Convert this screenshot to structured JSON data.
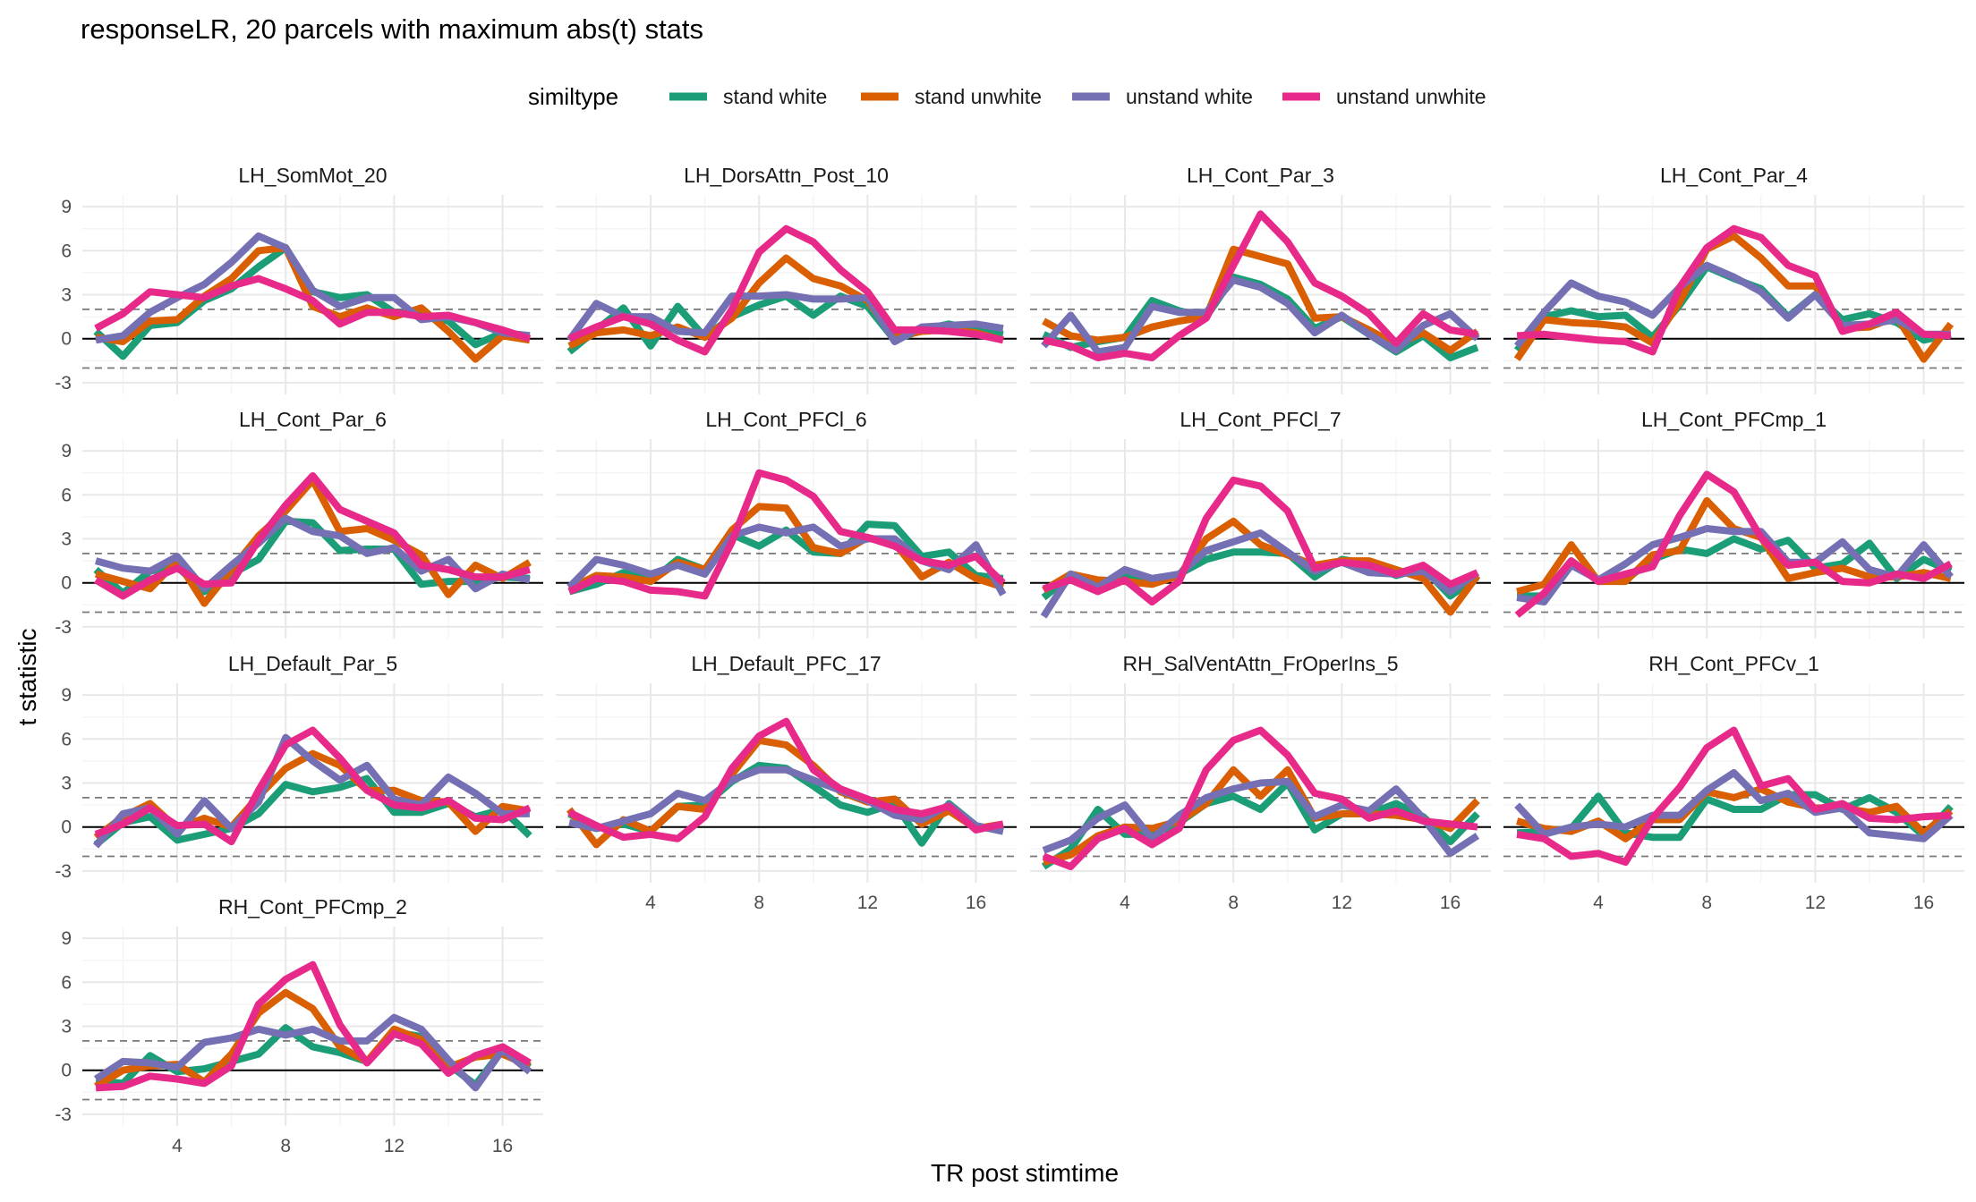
{
  "chart_data": {
    "type": "line",
    "title": "responseLR, 20 parcels with maximum abs(t) stats",
    "xlabel": "TR post stimtime",
    "ylabel": "t statistic",
    "legend": {
      "title": "similtype",
      "placement": "top",
      "entries": [
        {
          "name": "stand white",
          "color": "#1b9e77"
        },
        {
          "name": "stand unwhite",
          "color": "#d95f02"
        },
        {
          "name": "unstand white",
          "color": "#7570b3"
        },
        {
          "name": "unstand unwhite",
          "color": "#e7298a"
        }
      ]
    },
    "xlim": [
      0.5,
      17.5
    ],
    "ylim": [
      -3.8,
      9.8
    ],
    "x_ticks": [
      4,
      8,
      12,
      16
    ],
    "y_ticks": [
      -3,
      0,
      3,
      6,
      9
    ],
    "reference_lines": {
      "solid": 0,
      "dashed": [
        2,
        -2
      ]
    },
    "grid": true,
    "x": [
      1,
      2,
      3,
      4,
      5,
      6,
      7,
      8,
      9,
      10,
      11,
      12,
      13,
      14,
      15,
      16,
      17
    ],
    "panels": [
      {
        "name": "LH_SomMot_20",
        "series": [
          [
            0.5,
            -1.2,
            0.9,
            1.1,
            2.6,
            3.4,
            4.9,
            6.2,
            3.2,
            2.8,
            3.0,
            1.8,
            1.7,
            1.2,
            -0.4,
            0.4,
            0.2
          ],
          [
            0.1,
            -0.2,
            1.2,
            1.3,
            2.9,
            4.1,
            6.0,
            6.2,
            2.2,
            1.5,
            2.1,
            1.5,
            2.1,
            0.5,
            -1.4,
            0.2,
            -0.1
          ],
          [
            -0.1,
            0.2,
            1.8,
            2.8,
            3.7,
            5.2,
            7.0,
            6.2,
            3.3,
            2.2,
            2.8,
            2.8,
            1.3,
            1.5,
            1.1,
            0.4,
            0.2
          ],
          [
            0.7,
            1.7,
            3.2,
            3.0,
            2.8,
            3.6,
            4.1,
            3.4,
            2.6,
            1.0,
            1.8,
            1.8,
            1.5,
            1.6,
            1.1,
            0.6,
            0.0
          ]
        ]
      },
      {
        "name": "LH_DorsAttn_Post_10",
        "series": [
          [
            -0.9,
            0.6,
            2.1,
            -0.5,
            2.2,
            0.1,
            1.5,
            2.3,
            2.9,
            1.6,
            2.9,
            2.2,
            -0.1,
            0.6,
            1.0,
            0.6,
            0.3
          ],
          [
            -0.5,
            0.4,
            0.6,
            0.2,
            0.8,
            0.1,
            1.4,
            3.8,
            5.5,
            4.1,
            3.6,
            2.6,
            0.1,
            0.5,
            0.6,
            0.4,
            -0.1
          ],
          [
            -0.1,
            2.4,
            1.5,
            1.5,
            0.5,
            0.4,
            2.9,
            2.9,
            3.0,
            2.7,
            2.7,
            2.8,
            -0.2,
            0.8,
            0.9,
            1.0,
            0.7
          ],
          [
            0.0,
            0.8,
            1.5,
            1.0,
            -0.1,
            -0.9,
            2.0,
            5.9,
            7.5,
            6.6,
            4.7,
            3.2,
            0.6,
            0.6,
            0.5,
            0.3,
            -0.1
          ]
        ]
      },
      {
        "name": "LH_Cont_Par_3",
        "series": [
          [
            0.3,
            -0.6,
            -0.2,
            0.1,
            2.6,
            1.9,
            1.5,
            4.2,
            3.7,
            2.7,
            0.7,
            1.5,
            0.3,
            -0.9,
            0.2,
            -1.3,
            -0.6
          ],
          [
            1.2,
            0.2,
            -0.1,
            0.1,
            0.8,
            1.2,
            1.5,
            6.1,
            5.6,
            5.1,
            1.4,
            1.5,
            0.6,
            -0.4,
            0.4,
            -0.8,
            0.5
          ],
          [
            -0.5,
            1.6,
            -0.9,
            -0.6,
            2.2,
            1.8,
            1.8,
            4.0,
            3.5,
            2.4,
            0.4,
            1.6,
            0.3,
            -0.8,
            0.9,
            1.7,
            0.0
          ],
          [
            -0.1,
            -0.5,
            -1.3,
            -1.0,
            -1.3,
            0.2,
            1.4,
            5.0,
            8.5,
            6.6,
            3.8,
            2.9,
            1.7,
            -0.3,
            1.7,
            0.6,
            0.3
          ]
        ]
      },
      {
        "name": "LH_Cont_Par_4",
        "series": [
          [
            -0.8,
            1.5,
            1.9,
            1.5,
            1.6,
            0.1,
            2.3,
            4.9,
            4.1,
            3.4,
            1.5,
            3.0,
            1.3,
            1.7,
            1.1,
            -0.1,
            0.3
          ],
          [
            -1.4,
            1.3,
            1.1,
            1.0,
            0.8,
            -0.3,
            2.5,
            6.1,
            7.0,
            5.5,
            3.6,
            3.6,
            0.7,
            0.8,
            1.5,
            -1.4,
            1.0
          ],
          [
            -0.5,
            1.8,
            3.8,
            2.9,
            2.5,
            1.6,
            3.5,
            5.0,
            4.2,
            3.2,
            1.4,
            3.0,
            0.9,
            1.0,
            1.3,
            0.3,
            0.3
          ],
          [
            0.2,
            0.3,
            0.1,
            -0.1,
            -0.2,
            -0.9,
            3.5,
            6.2,
            7.5,
            6.9,
            5.0,
            4.3,
            0.5,
            1.0,
            1.8,
            0.3,
            0.2
          ]
        ]
      },
      {
        "name": "LH_Cont_Par_6",
        "series": [
          [
            0.9,
            -0.7,
            0.8,
            1.1,
            -0.6,
            0.6,
            1.6,
            4.2,
            4.1,
            2.2,
            2.3,
            2.3,
            -0.1,
            0.1,
            0.1,
            0.4,
            0.3
          ],
          [
            0.6,
            0.1,
            -0.4,
            1.5,
            -1.4,
            0.9,
            3.2,
            4.9,
            7.0,
            3.5,
            3.7,
            2.9,
            1.9,
            -0.8,
            1.2,
            0.3,
            1.4
          ],
          [
            1.5,
            1.0,
            0.8,
            1.8,
            -0.4,
            1.2,
            2.7,
            4.4,
            3.5,
            3.2,
            2.0,
            2.4,
            0.8,
            1.6,
            -0.4,
            0.6,
            0.2
          ],
          [
            0.2,
            -0.9,
            0.2,
            1.0,
            -0.1,
            0.0,
            2.9,
            5.3,
            7.3,
            5.0,
            4.2,
            3.4,
            1.2,
            0.9,
            0.4,
            0.4,
            0.9
          ]
        ]
      },
      {
        "name": "LH_Cont_PFCl_6",
        "series": [
          [
            -0.6,
            -0.1,
            0.7,
            0.1,
            1.6,
            0.9,
            3.3,
            2.5,
            3.6,
            2.1,
            2.0,
            4.0,
            3.9,
            1.8,
            2.1,
            0.5,
            0.3
          ],
          [
            -0.4,
            0.5,
            0.4,
            0.1,
            1.4,
            0.9,
            3.6,
            5.2,
            5.1,
            2.4,
            2.0,
            3.1,
            2.7,
            0.4,
            1.4,
            0.3,
            -0.3
          ],
          [
            -0.3,
            1.6,
            1.2,
            0.6,
            1.2,
            0.6,
            3.2,
            3.8,
            3.4,
            3.8,
            2.5,
            3.0,
            3.0,
            1.5,
            0.9,
            2.6,
            -0.8
          ],
          [
            -0.6,
            0.3,
            0.1,
            -0.5,
            -0.6,
            -0.9,
            2.8,
            7.5,
            7.0,
            5.9,
            3.5,
            3.1,
            2.5,
            1.5,
            1.2,
            1.8,
            0.0
          ]
        ]
      },
      {
        "name": "LH_Cont_PFCl_7",
        "series": [
          [
            -1.0,
            0.5,
            -0.2,
            0.6,
            0.1,
            0.6,
            1.6,
            2.1,
            2.1,
            2.0,
            0.4,
            1.6,
            1.3,
            0.5,
            1.0,
            -0.9,
            0.4
          ],
          [
            -0.5,
            0.6,
            0.2,
            0.1,
            -0.1,
            0.5,
            3.0,
            4.2,
            2.6,
            1.9,
            1.2,
            1.5,
            1.5,
            0.9,
            0.3,
            -2.0,
            0.5
          ],
          [
            -2.3,
            0.6,
            -0.3,
            0.9,
            0.3,
            0.6,
            2.2,
            2.8,
            3.4,
            2.1,
            0.8,
            1.4,
            0.7,
            0.6,
            0.8,
            -0.6,
            0.7
          ],
          [
            -0.4,
            0.2,
            -0.6,
            0.2,
            -1.3,
            0.1,
            4.4,
            7.0,
            6.6,
            4.9,
            1.0,
            1.4,
            1.2,
            0.6,
            1.2,
            -0.1,
            0.7
          ]
        ]
      },
      {
        "name": "LH_Cont_PFCmp_1",
        "series": [
          [
            -0.9,
            -0.9,
            1.5,
            0.1,
            0.2,
            1.6,
            2.3,
            2.0,
            3.0,
            2.3,
            2.9,
            1.0,
            1.3,
            2.7,
            0.3,
            1.6,
            0.8
          ],
          [
            -0.6,
            -0.1,
            2.6,
            0.1,
            0.1,
            1.9,
            2.2,
            5.6,
            3.7,
            3.1,
            0.3,
            0.7,
            1.0,
            0.4,
            0.4,
            0.7,
            0.3
          ],
          [
            -1.0,
            -1.3,
            1.2,
            0.2,
            1.3,
            2.6,
            3.1,
            3.7,
            3.5,
            3.5,
            1.4,
            1.4,
            2.8,
            0.9,
            0.4,
            2.6,
            0.4
          ],
          [
            -2.2,
            -0.7,
            1.5,
            0.1,
            0.6,
            1.1,
            4.6,
            7.4,
            6.2,
            3.1,
            1.2,
            1.4,
            0.1,
            0.0,
            0.6,
            0.3,
            1.3
          ]
        ]
      },
      {
        "name": "LH_Default_Par_5",
        "series": [
          [
            -1.2,
            0.3,
            0.7,
            -0.9,
            -0.5,
            -0.1,
            0.9,
            2.9,
            2.4,
            2.7,
            3.3,
            1.0,
            1.0,
            1.6,
            0.7,
            1.2,
            -0.6
          ],
          [
            -0.7,
            0.7,
            1.6,
            -0.1,
            0.6,
            0.0,
            2.1,
            4.0,
            5.0,
            4.2,
            2.5,
            2.5,
            1.8,
            1.7,
            -0.3,
            1.4,
            1.1
          ],
          [
            -1.3,
            0.9,
            1.3,
            -0.5,
            1.8,
            -0.1,
            1.7,
            6.1,
            4.5,
            3.2,
            4.2,
            1.9,
            1.5,
            3.4,
            2.3,
            0.9,
            0.9
          ],
          [
            -0.5,
            0.2,
            1.3,
            0.1,
            0.2,
            -1.0,
            2.5,
            5.6,
            6.6,
            4.7,
            2.5,
            1.5,
            1.3,
            1.8,
            0.6,
            0.5,
            1.3
          ]
        ]
      },
      {
        "name": "LH_Default_PFC_17",
        "series": [
          [
            0.9,
            -0.1,
            0.2,
            -0.3,
            1.4,
            1.5,
            3.1,
            4.2,
            4.0,
            2.8,
            1.5,
            1.0,
            1.6,
            -1.1,
            1.6,
            0.1,
            -0.3
          ],
          [
            1.2,
            -1.2,
            0.5,
            -0.3,
            1.4,
            1.2,
            3.6,
            5.9,
            5.6,
            4.2,
            2.4,
            1.7,
            1.9,
            0.2,
            1.1,
            -0.1,
            0.2
          ],
          [
            0.3,
            -0.1,
            0.4,
            0.9,
            2.3,
            1.8,
            3.2,
            3.9,
            3.9,
            3.2,
            2.5,
            1.8,
            0.8,
            0.5,
            1.5,
            0.1,
            -0.3
          ],
          [
            1.0,
            0.1,
            -0.7,
            -0.5,
            -0.8,
            0.7,
            4.0,
            6.2,
            7.2,
            3.9,
            2.6,
            1.9,
            1.2,
            0.9,
            1.4,
            -0.2,
            0.2
          ]
        ]
      },
      {
        "name": "RH_SalVentAttn_FrOperIns_5",
        "series": [
          [
            -2.7,
            -1.5,
            1.2,
            -0.5,
            -0.5,
            0.3,
            1.6,
            2.1,
            1.2,
            3.0,
            -0.2,
            0.9,
            0.9,
            1.6,
            0.7,
            -1.0,
            0.9
          ],
          [
            -2.4,
            -1.9,
            -0.6,
            0.0,
            -0.1,
            0.4,
            1.6,
            3.9,
            2.1,
            3.9,
            0.6,
            0.9,
            0.9,
            0.8,
            0.5,
            -0.1,
            1.8
          ],
          [
            -1.6,
            -0.9,
            0.6,
            1.5,
            -0.8,
            0.8,
            2.0,
            2.6,
            3.0,
            3.1,
            0.7,
            1.5,
            1.1,
            2.6,
            0.6,
            -1.8,
            -0.6
          ],
          [
            -2.0,
            -2.7,
            -0.8,
            -0.1,
            -1.2,
            -0.1,
            3.9,
            5.9,
            6.6,
            4.9,
            2.3,
            1.9,
            0.6,
            1.1,
            0.4,
            0.2,
            0.0
          ]
        ]
      },
      {
        "name": "RH_Cont_PFCv_1",
        "series": [
          [
            -0.4,
            -0.3,
            -0.1,
            2.1,
            -0.4,
            -0.7,
            -0.7,
            1.9,
            1.2,
            1.2,
            2.2,
            2.2,
            1.2,
            2.0,
            1.0,
            -0.6,
            1.4
          ],
          [
            0.4,
            -0.1,
            -0.3,
            0.4,
            -0.8,
            0.5,
            0.5,
            2.4,
            2.0,
            2.6,
            1.7,
            1.3,
            1.3,
            1.0,
            1.4,
            -0.4,
            1.1
          ],
          [
            1.5,
            -0.5,
            0.0,
            0.2,
            0.0,
            0.8,
            0.8,
            2.5,
            3.7,
            1.8,
            2.3,
            1.0,
            1.3,
            -0.4,
            -0.6,
            -0.8,
            0.8
          ],
          [
            -0.5,
            -0.8,
            -2.0,
            -1.8,
            -2.4,
            0.6,
            2.7,
            5.4,
            6.6,
            2.8,
            3.3,
            1.2,
            1.6,
            0.6,
            0.5,
            0.7,
            0.8
          ]
        ]
      },
      {
        "name": "RH_Cont_PFCmp_2",
        "series": [
          [
            -0.7,
            -0.9,
            1.0,
            -0.1,
            0.1,
            0.6,
            1.1,
            2.9,
            1.6,
            1.2,
            0.6,
            2.6,
            2.3,
            0.4,
            -1.0,
            1.4,
            0.2
          ],
          [
            -1.1,
            0.0,
            0.3,
            0.4,
            -0.8,
            1.1,
            3.9,
            5.3,
            4.2,
            1.6,
            0.6,
            2.8,
            2.1,
            0.2,
            0.9,
            1.1,
            0.3
          ],
          [
            -0.6,
            0.6,
            0.5,
            0.2,
            1.9,
            2.2,
            2.8,
            2.4,
            2.8,
            2.0,
            2.0,
            3.6,
            2.8,
            0.7,
            -1.2,
            1.4,
            -0.1
          ],
          [
            -1.2,
            -1.1,
            -0.4,
            -0.6,
            -0.9,
            0.3,
            4.5,
            6.2,
            7.2,
            3.1,
            0.5,
            2.5,
            1.8,
            -0.2,
            1.0,
            1.6,
            0.5
          ]
        ]
      }
    ]
  }
}
